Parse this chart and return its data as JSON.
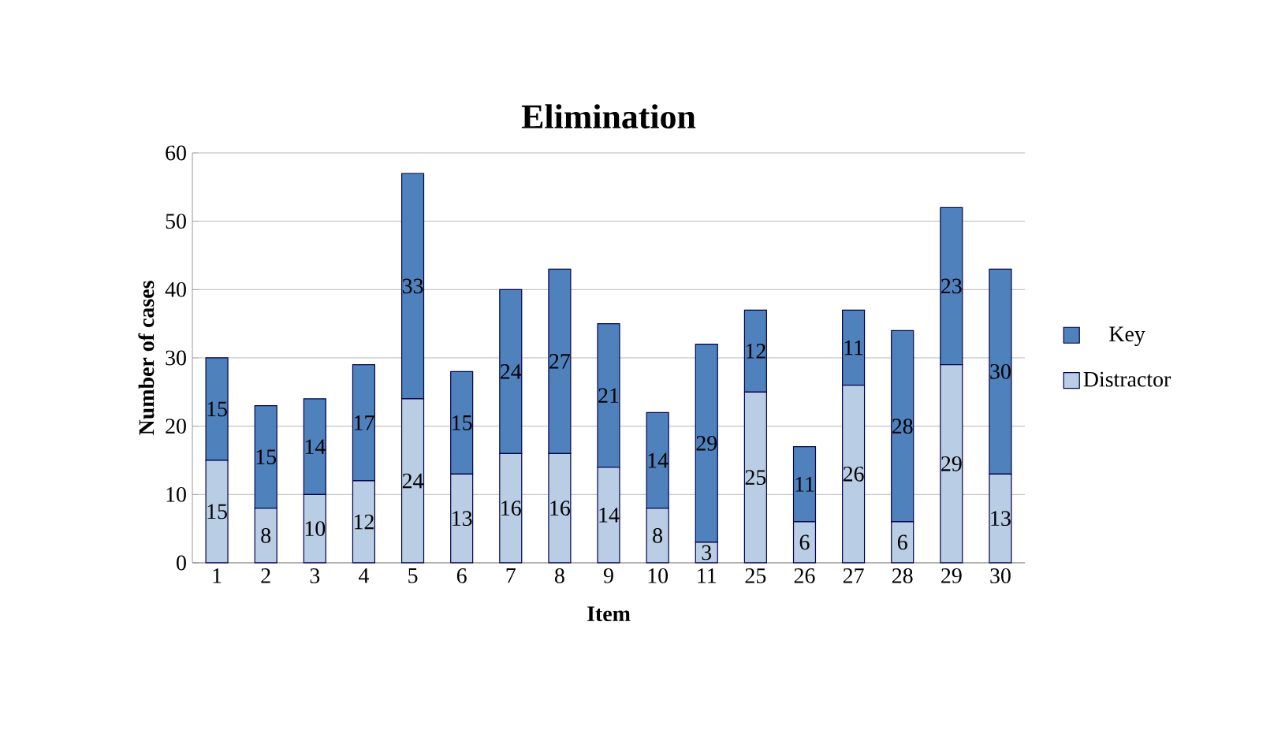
{
  "chart_data": {
    "type": "bar",
    "title": "Elimination",
    "xlabel": "Item",
    "ylabel": "Number of cases",
    "categories": [
      "1",
      "2",
      "3",
      "4",
      "5",
      "6",
      "7",
      "8",
      "9",
      "10",
      "11",
      "25",
      "26",
      "27",
      "28",
      "29",
      "30"
    ],
    "series": [
      {
        "name": "Distractor",
        "color": "#b9cde5",
        "values": [
          15,
          8,
          10,
          12,
          24,
          13,
          16,
          16,
          14,
          8,
          3,
          25,
          6,
          26,
          6,
          29,
          13
        ]
      },
      {
        "name": "Key",
        "color": "#4f81bd",
        "values": [
          15,
          15,
          14,
          17,
          33,
          15,
          24,
          27,
          21,
          14,
          29,
          12,
          11,
          11,
          28,
          23,
          30
        ]
      }
    ],
    "stacked": true,
    "ylim": [
      0,
      60
    ],
    "yticks": [
      0,
      10,
      20,
      30,
      40,
      50,
      60
    ],
    "grid": "y",
    "legend": "right",
    "data_labels": true
  }
}
